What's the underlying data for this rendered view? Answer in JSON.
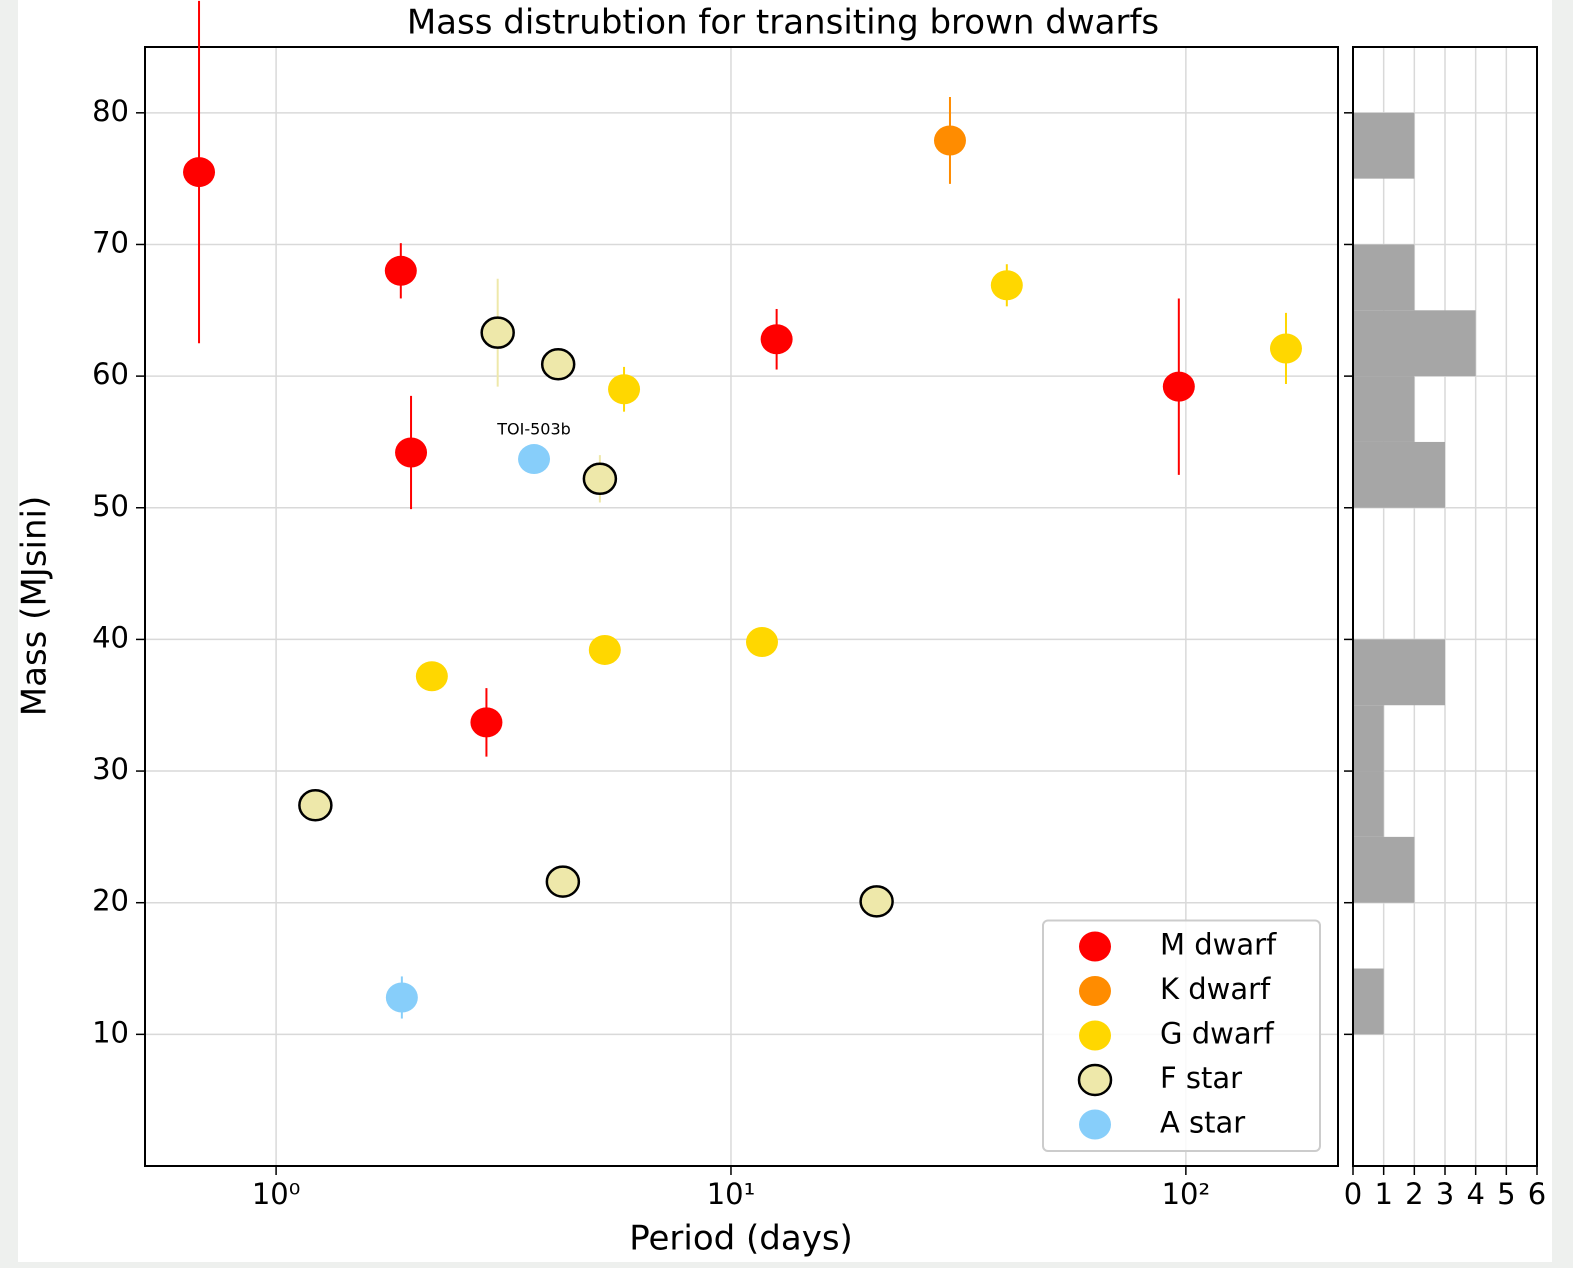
{
  "chart_data": [
    {
      "type": "scatter",
      "title": "Mass distrubtion for transiting brown dwarfs",
      "xlabel": "Period (days)",
      "ylabel": "Mass (MJsini)",
      "xscale": "log",
      "xlim": [
        0.515,
        216
      ],
      "ylim": [
        0,
        85
      ],
      "xticks": [
        {
          "value": 1,
          "label": "10⁰"
        },
        {
          "value": 10,
          "label": "10¹"
        },
        {
          "value": 100,
          "label": "10²"
        }
      ],
      "yticks": [
        10,
        20,
        30,
        40,
        50,
        60,
        70,
        80
      ],
      "grid": true,
      "legend": "lower right",
      "annotations": [
        {
          "text": "TOI-503b",
          "x": 3.69,
          "y": 55.9
        }
      ],
      "series": [
        {
          "name": "M dwarf",
          "color": "#ff0000",
          "x": [
            0.677,
            1.88,
            1.98,
            2.9,
            12.6,
            96.5
          ],
          "y": [
            75.5,
            68.0,
            54.2,
            33.7,
            62.8,
            59.2
          ],
          "yerr": [
            13.0,
            2.1,
            4.3,
            2.6,
            2.3,
            6.7
          ]
        },
        {
          "name": "K dwarf",
          "color": "#ff8c00",
          "x": [
            30.3
          ],
          "y": [
            77.9
          ],
          "yerr": [
            3.3
          ]
        },
        {
          "name": "G dwarf",
          "color": "#ffd700",
          "x": [
            2.2,
            5.28,
            5.82,
            11.7,
            40.4,
            166
          ],
          "y": [
            37.2,
            39.2,
            59.0,
            39.8,
            66.9,
            62.1
          ],
          "yerr": [
            0.5,
            0.5,
            1.7,
            0.5,
            1.6,
            2.7
          ]
        },
        {
          "name": "F star",
          "color": "#eee8aa",
          "edgecolor": "#000000",
          "x": [
            1.22,
            3.07,
            4.17,
            5.15,
            4.27,
            20.9
          ],
          "y": [
            27.4,
            63.3,
            60.9,
            52.2,
            21.6,
            20.1
          ],
          "yerr": [
            0.5,
            4.1,
            0.5,
            1.8,
            0.5,
            0.5
          ]
        },
        {
          "name": "A star",
          "color": "#87cefa",
          "x": [
            3.69,
            1.89
          ],
          "y": [
            53.7,
            12.8
          ],
          "yerr": [
            0.6,
            1.6
          ]
        }
      ]
    },
    {
      "type": "histogram",
      "orientation": "horizontal",
      "color": "#a6a6a6",
      "bins": [
        10,
        15,
        20,
        25,
        30,
        35,
        40,
        45,
        50,
        55,
        60,
        65,
        70,
        75,
        80
      ],
      "counts": [
        1,
        0,
        2,
        1,
        1,
        3,
        0,
        0,
        3,
        2,
        4,
        2,
        0,
        2
      ],
      "xlim": [
        0,
        6
      ],
      "ylim": [
        0,
        85
      ],
      "xticks": [
        0,
        1,
        2,
        3,
        4,
        5,
        6
      ],
      "yticks": [
        10,
        20,
        30,
        40,
        50,
        60,
        70,
        80
      ],
      "grid": true
    }
  ]
}
